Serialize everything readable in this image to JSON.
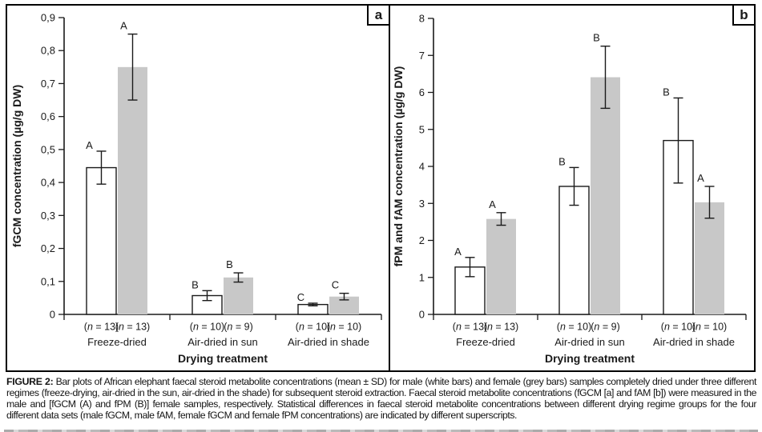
{
  "caption": {
    "label": "FIGURE 2:",
    "text": "Bar plots of African elephant faecal steroid metabolite concentrations (mean ± SD) for male (white bars) and female (grey bars) samples completely dried under three different regimes (freeze-drying, air-dried in the sun, air-dried in the shade) for subsequent steroid extraction. Faecal steroid metabolite concentrations (fGCM [a] and fAM [b]) were measured in the male and [fGCM (A) and fPM (B)] female samples, respectively. Statistical differences in faecal steroid metabolite concentrations between different drying regime groups for the four different data sets (male fGCM, male fAM, female fGCM and female fPM concentrations) are indicated by different superscripts."
  },
  "colors": {
    "male_bar_fill": "#ffffff",
    "female_bar_fill": "#c8c8c8",
    "ink": "#1a1a1a"
  },
  "chart_data": [
    {
      "panel": "a",
      "type": "bar",
      "title": "",
      "ylabel": "fGCM concentration (µg/g DW)",
      "xlabel": "Drying treatment",
      "ylim": [
        0,
        0.9
      ],
      "ytick_step": 0.1,
      "ytick_labels": [
        "0",
        "0,1",
        "0,2",
        "0,3",
        "0,4",
        "0,5",
        "0,6",
        "0,7",
        "0,8",
        "0,9"
      ],
      "grid": false,
      "categories": [
        "Freeze-dried",
        "Air-dried in sun",
        "Air-dried in shade"
      ],
      "n_labels": [
        [
          "(n = 13)",
          "(n = 13)"
        ],
        [
          "(n = 10)",
          "(n = 9)"
        ],
        [
          "(n = 10)",
          "(n = 10)"
        ]
      ],
      "series": [
        {
          "name": "male",
          "fill": "#ffffff",
          "stroke": true,
          "values": [
            0.445,
            0.057,
            0.03
          ],
          "errors": [
            0.05,
            0.015,
            0.004
          ],
          "letters": [
            "A",
            "B",
            "C"
          ]
        },
        {
          "name": "female",
          "fill": "#c8c8c8",
          "stroke": false,
          "values": [
            0.75,
            0.112,
            0.054
          ],
          "errors": [
            0.1,
            0.014,
            0.01
          ],
          "letters": [
            "A",
            "B",
            "C"
          ]
        }
      ]
    },
    {
      "panel": "b",
      "type": "bar",
      "title": "",
      "ylabel": "fPM and fAM concentration (µg/g DW)",
      "xlabel": "Drying treatment",
      "ylim": [
        0,
        8
      ],
      "ytick_step": 1,
      "ytick_labels": [
        "0",
        "1",
        "2",
        "3",
        "4",
        "5",
        "6",
        "7",
        "8"
      ],
      "grid": false,
      "categories": [
        "Freeze-dried",
        "Air-dried in sun",
        "Air-dried in shade"
      ],
      "n_labels": [
        [
          "(n = 13)",
          "(n = 13)"
        ],
        [
          "(n = 10)",
          "(n = 9)"
        ],
        [
          "(n = 10)",
          "(n = 10)"
        ]
      ],
      "series": [
        {
          "name": "male",
          "fill": "#ffffff",
          "stroke": true,
          "values": [
            1.28,
            3.46,
            4.7
          ],
          "errors": [
            0.26,
            0.51,
            1.15
          ],
          "letters": [
            "A",
            "B",
            "B"
          ]
        },
        {
          "name": "female",
          "fill": "#c8c8c8",
          "stroke": false,
          "values": [
            2.58,
            6.41,
            3.03
          ],
          "errors": [
            0.17,
            0.84,
            0.43
          ],
          "letters": [
            "A",
            "B",
            "A"
          ]
        }
      ]
    }
  ]
}
